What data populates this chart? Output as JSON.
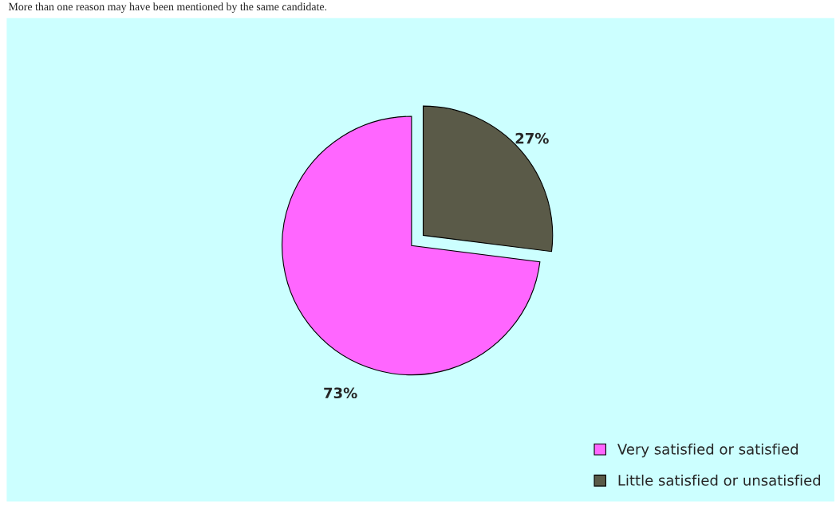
{
  "chart_data": {
    "type": "pie",
    "categories": [
      "Very satisfied or satisfied",
      "Little satisfied or unsatisfied"
    ],
    "values": [
      73,
      27
    ],
    "colors": [
      "#ff66ff",
      "#5a5a48"
    ],
    "value_labels": [
      "73%",
      "27%"
    ],
    "annotations": [
      "More than one reason may have been mentioned by the same candidate."
    ],
    "legend": "bottom right"
  }
}
